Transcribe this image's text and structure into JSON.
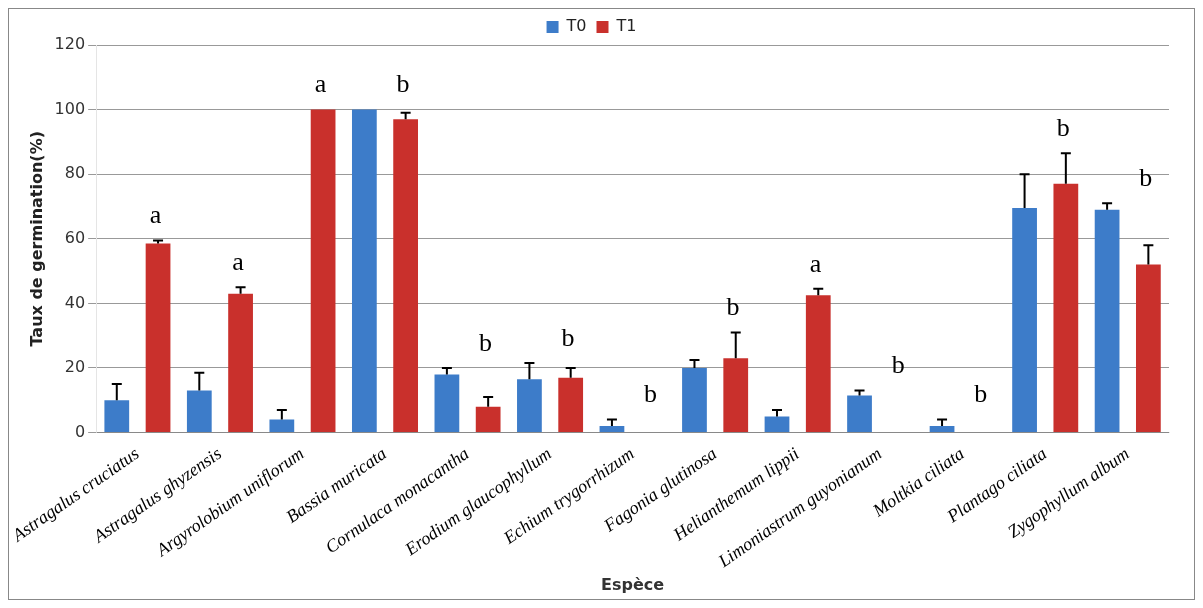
{
  "chart_data": {
    "type": "bar",
    "xlabel": "Espèce",
    "ylabel": "Taux de germination(%)",
    "categories": [
      "Astragalus cruciatus",
      "Astragalus ghyzensis",
      "Argyrolobium uniflorum",
      "Bassia muricata",
      "Cornulaca monacantha",
      "Erodium glaucophyllum",
      "Echium trygorrhizum",
      "Fagonia glutinosa",
      "Helianthemum lippii",
      "Limoniastrum guyonianum",
      "Moltkia ciliata",
      "Plantago ciliata",
      "Zygophyllum album"
    ],
    "series": [
      {
        "name": "T0",
        "color": "#3d7cc9",
        "values": [
          10,
          13,
          4,
          100,
          18,
          16.5,
          2,
          20,
          5,
          11.5,
          2,
          69.5,
          69
        ],
        "errors": [
          [
            10,
            15
          ],
          [
            13,
            18.5
          ],
          [
            4,
            7
          ],
          null,
          [
            18,
            20
          ],
          [
            16.5,
            21.5
          ],
          [
            2,
            4
          ],
          [
            20,
            22.5
          ],
          [
            5,
            7
          ],
          [
            11.5,
            13
          ],
          [
            2,
            4
          ],
          [
            69.5,
            80
          ],
          [
            69,
            71
          ]
        ]
      },
      {
        "name": "T1",
        "color": "#c9302c",
        "values": [
          58.5,
          43,
          100,
          97,
          8,
          17,
          null,
          23,
          42.5,
          null,
          null,
          77,
          52
        ],
        "errors": [
          [
            58.5,
            59.5
          ],
          [
            43,
            45
          ],
          null,
          [
            97,
            99
          ],
          [
            8,
            11
          ],
          [
            17,
            20
          ],
          null,
          [
            23,
            31
          ],
          [
            42.5,
            44.5
          ],
          null,
          null,
          [
            77,
            86.5
          ],
          [
            52,
            58
          ]
        ]
      }
    ],
    "ylim": [
      0,
      120
    ],
    "yticks": [
      0,
      20,
      40,
      60,
      80,
      100,
      120
    ],
    "grid": "y",
    "legend": "top",
    "annotations": [
      "a",
      "a",
      "a",
      "b",
      "b",
      "b",
      "b",
      "b",
      "a",
      "b",
      "b",
      "b",
      "b"
    ]
  }
}
